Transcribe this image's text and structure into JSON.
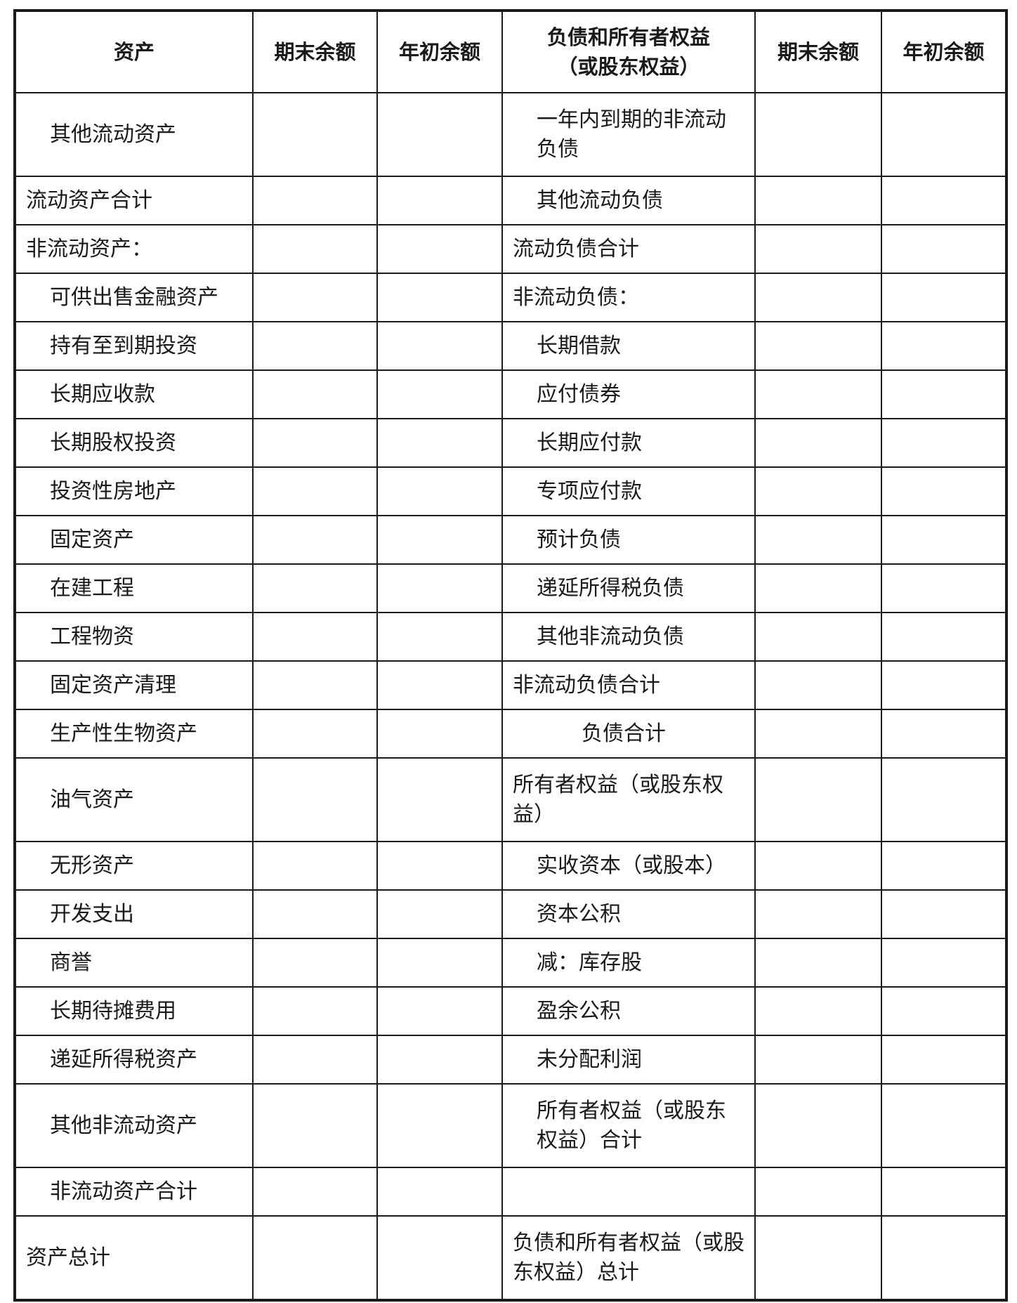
{
  "header": {
    "assets": "资产",
    "end_balance": "期末余额",
    "begin_balance": "年初余额",
    "liabilities_line1": "负债和所有者权益",
    "liabilities_line2": "（或股东权益）",
    "end_balance_2": "期末余额",
    "begin_balance_2": "年初余额"
  },
  "rows": [
    {
      "asset": "其他流动资产",
      "ai": 1,
      "liab": "一年内到期的非流动负债",
      "li": 1,
      "tall": true
    },
    {
      "asset": "流动资产合计",
      "ai": 0,
      "liab": "其他流动负债",
      "li": 1
    },
    {
      "asset": "非流动资产：",
      "ai": 0,
      "liab": "流动负债合计",
      "li": 0
    },
    {
      "asset": "可供出售金融资产",
      "ai": 1,
      "liab": "非流动负债：",
      "li": 0
    },
    {
      "asset": "持有至到期投资",
      "ai": 1,
      "liab": "长期借款",
      "li": 1
    },
    {
      "asset": "长期应收款",
      "ai": 1,
      "liab": "应付债券",
      "li": 1
    },
    {
      "asset": "长期股权投资",
      "ai": 1,
      "liab": "长期应付款",
      "li": 1
    },
    {
      "asset": "投资性房地产",
      "ai": 1,
      "liab": "专项应付款",
      "li": 1
    },
    {
      "asset": "固定资产",
      "ai": 1,
      "liab": "预计负债",
      "li": 1
    },
    {
      "asset": "在建工程",
      "ai": 1,
      "liab": "递延所得税负债",
      "li": 1
    },
    {
      "asset": "工程物资",
      "ai": 1,
      "liab": "其他非流动负债",
      "li": 1
    },
    {
      "asset": "固定资产清理",
      "ai": 1,
      "liab": "非流动负债合计",
      "li": 0
    },
    {
      "asset": "生产性生物资产",
      "ai": 1,
      "liab": "负债合计",
      "li": 2
    },
    {
      "asset": "油气资产",
      "ai": 1,
      "liab": "所有者权益（或股东权益）",
      "li": 0,
      "tall": true
    },
    {
      "asset": "无形资产",
      "ai": 1,
      "liab": "实收资本（或股本）",
      "li": 1
    },
    {
      "asset": "开发支出",
      "ai": 1,
      "liab": "资本公积",
      "li": 1
    },
    {
      "asset": "商誉",
      "ai": 1,
      "liab": "减：库存股",
      "li": 1
    },
    {
      "asset": "长期待摊费用",
      "ai": 1,
      "liab": "盈余公积",
      "li": 1
    },
    {
      "asset": "递延所得税资产",
      "ai": 1,
      "liab": "未分配利润",
      "li": 1
    },
    {
      "asset": "其他非流动资产",
      "ai": 1,
      "liab": "所有者权益（或股东权益）合计",
      "li": 1,
      "tall": true
    },
    {
      "asset": "非流动资产合计",
      "ai": 1,
      "liab": "",
      "li": 0
    },
    {
      "asset": "资产总计",
      "ai": 0,
      "liab": "负债和所有者权益（或股东权益）总计",
      "li": 0,
      "tall": true
    }
  ]
}
